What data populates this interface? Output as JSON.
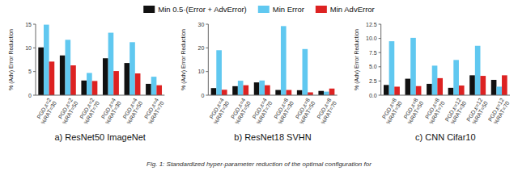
{
  "chart_data": [
    {
      "type": "bar",
      "subtitle": "a) ResNet50 ImageNet",
      "y_label": "% (Adv) Error Reduction",
      "categories": [
        "PGD,ε=2\n%RAT=30",
        "PGD,ε=2\n%RAT=50",
        "PGD,ε=2\n%RAT=70",
        "PGD,ε=4\n%RAT=30",
        "PGD,ε=4\n%RAT=50",
        "PGD,ε=4\n%RAT=70"
      ],
      "series": [
        {
          "name": "Min 0.5·(Error + AdvError)",
          "color": "#111111",
          "values": [
            10.1,
            8.4,
            3.1,
            7.8,
            6.8,
            2.4
          ]
        },
        {
          "name": "Min Error",
          "color": "#60c8f0",
          "values": [
            14.9,
            11.7,
            4.7,
            13.2,
            11.2,
            3.9
          ]
        },
        {
          "name": "Min AdvError",
          "color": "#dd2222",
          "values": [
            7.1,
            6.3,
            3.0,
            5.1,
            4.6,
            2.1
          ]
        }
      ],
      "ylim": [
        0,
        15
      ],
      "yticks": [
        0,
        5,
        10,
        15
      ],
      "grid": false,
      "legend": "top"
    },
    {
      "type": "bar",
      "subtitle": "b) ResNet18 SVHN",
      "y_label": "% (Adv) Error Reduction",
      "categories": [
        "PGD,ε=4\n%RAT=30",
        "PGD,ε=4\n%RAT=50",
        "PGD,ε=4\n%RAT=70",
        "PGD,ε=8\n%RAT=30",
        "PGD,ε=8\n%RAT=50",
        "PGD,ε=8\n%RAT=70"
      ],
      "series": [
        {
          "name": "Min 0.5·(Error + AdvError)",
          "color": "#111111",
          "values": [
            3.0,
            3.8,
            5.4,
            2.2,
            2.1,
            1.8
          ]
        },
        {
          "name": "Min Error",
          "color": "#60c8f0",
          "values": [
            19.0,
            6.1,
            6.2,
            29.2,
            19.5,
            1.5
          ]
        },
        {
          "name": "Min AdvError",
          "color": "#dd2222",
          "values": [
            2.3,
            4.2,
            4.2,
            2.2,
            1.2,
            2.8
          ]
        }
      ],
      "ylim": [
        0,
        30
      ],
      "yticks": [
        0,
        10,
        20,
        30
      ],
      "grid": false
    },
    {
      "type": "bar",
      "subtitle": "c) CNN Cifar10",
      "y_label": "% (Adv) Error Reduction",
      "categories": [
        "PGD,ε=8\n%RAT=30",
        "PGD,ε=8\n%RAT=50",
        "PGD,ε=8\n%RAT=70",
        "PGD,ε=12\n%RAT=30",
        "PGD,ε=12\n%RAT=50",
        "PGD,ε=12\n%RAT=70"
      ],
      "series": [
        {
          "name": "Min 0.5·(Error + AdvError)",
          "color": "#111111",
          "values": [
            1.8,
            2.9,
            2.0,
            1.3,
            3.5,
            2.7
          ]
        },
        {
          "name": "Min Error",
          "color": "#60c8f0",
          "values": [
            9.5,
            10.1,
            5.2,
            6.2,
            8.7,
            1.5
          ]
        },
        {
          "name": "Min AdvError",
          "color": "#dd2222",
          "values": [
            1.5,
            1.6,
            3.0,
            1.7,
            3.4,
            3.5
          ]
        }
      ],
      "ylim": [
        0,
        12.5
      ],
      "yticks": [
        {
          "value": 0,
          "label": "0.0"
        },
        2.5,
        {
          "value": 5,
          "label": "5.0"
        },
        7.5,
        {
          "value": 10,
          "label": "10.0"
        },
        12.5
      ],
      "grid": false
    }
  ],
  "caption": "Fig. 1: Standardized hyper-parameter reduction of the optimal configuration for"
}
